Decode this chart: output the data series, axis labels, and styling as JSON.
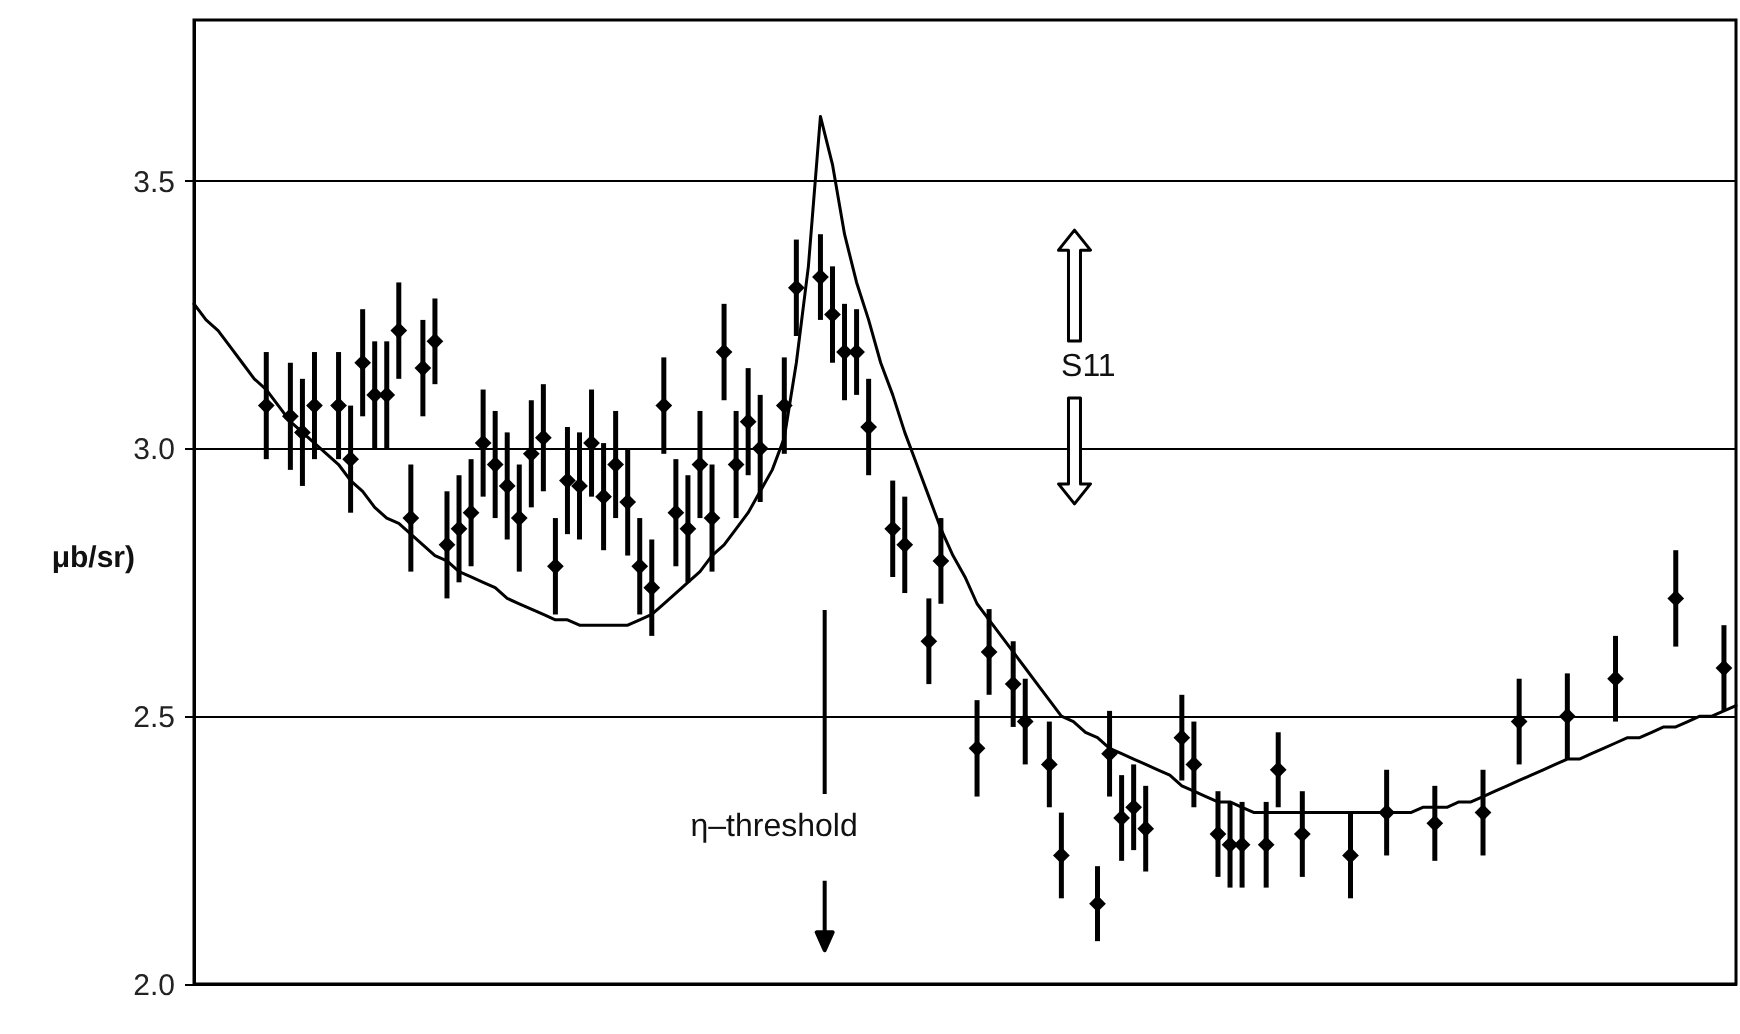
{
  "chart_data": {
    "type": "scatter",
    "ylabel": "μb/sr)",
    "annotations": [
      "S11",
      "η–threshold"
    ],
    "categories": [
      null,
      null,
      null,
      null,
      null,
      null,
      null,
      null,
      null,
      null,
      null,
      null,
      null,
      null,
      null,
      null,
      null,
      null,
      null,
      null,
      null,
      null,
      null,
      null,
      null,
      null,
      null,
      null,
      null,
      null,
      null,
      null,
      null,
      null,
      null,
      null,
      null,
      null,
      null,
      null,
      null,
      null,
      null,
      null,
      null,
      null,
      null,
      null,
      null,
      null,
      null,
      null,
      null,
      null,
      null,
      null,
      null,
      null,
      null,
      null,
      null,
      null,
      null,
      null,
      null,
      null,
      null,
      null,
      null,
      null,
      null,
      null,
      null,
      null,
      null,
      null,
      null,
      null,
      null,
      null,
      null,
      null,
      null,
      null,
      null,
      null,
      null,
      null,
      null,
      null,
      null,
      null,
      null,
      null,
      null,
      null,
      null,
      null,
      null,
      null,
      null,
      null,
      null,
      null,
      null,
      null,
      null,
      null,
      null,
      null,
      null,
      null,
      null,
      null,
      null,
      null,
      null,
      null,
      null,
      null,
      null,
      null,
      null,
      null,
      null,
      null,
      null,
      null,
      null
    ],
    "ylim": [
      2,
      3.8
    ],
    "yticks": [
      {
        "value": 2,
        "label": "2.0"
      },
      2.5,
      {
        "value": 3,
        "label": "3.0"
      },
      3.5
    ],
    "grid": "y",
    "series": [
      {
        "type": "line",
        "color": "#000000",
        "values": [
          3.27,
          3.24,
          3.22,
          3.19,
          3.16,
          3.13,
          3.11,
          3.08,
          3.05,
          3.03,
          3.01,
          2.99,
          2.97,
          2.94,
          2.92,
          2.89,
          2.87,
          2.86,
          2.84,
          2.82,
          2.8,
          2.79,
          2.77,
          2.76,
          2.75,
          2.74,
          2.72,
          2.71,
          2.7,
          2.69,
          2.68,
          2.68,
          2.67,
          2.67,
          2.67,
          2.67,
          2.67,
          2.68,
          2.69,
          2.71,
          2.73,
          2.75,
          2.77,
          2.8,
          2.82,
          2.85,
          2.88,
          2.92,
          2.96,
          3.02,
          3.16,
          3.34,
          3.62,
          3.53,
          3.4,
          3.31,
          3.24,
          3.16,
          3.1,
          3.03,
          2.97,
          2.91,
          2.85,
          2.8,
          2.76,
          2.71,
          2.68,
          2.65,
          2.62,
          2.59,
          2.56,
          2.53,
          2.5,
          2.49,
          2.47,
          2.46,
          2.44,
          2.43,
          2.42,
          2.41,
          2.4,
          2.39,
          2.37,
          2.36,
          2.35,
          2.34,
          2.34,
          2.33,
          2.32,
          2.32,
          2.32,
          2.32,
          2.32,
          2.32,
          2.32,
          2.32,
          2.32,
          2.32,
          2.32,
          2.32,
          2.32,
          2.32,
          2.33,
          2.33,
          2.33,
          2.34,
          2.34,
          2.35,
          2.36,
          2.37,
          2.38,
          2.39,
          2.4,
          2.41,
          2.42,
          2.42,
          2.43,
          2.44,
          2.45,
          2.46,
          2.46,
          2.47,
          2.48,
          2.48,
          2.49,
          2.5,
          2.5,
          2.51,
          2.52
        ]
      },
      {
        "type": "scatter",
        "color": "#000000",
        "marker": "diamond",
        "values": [
          null,
          null,
          null,
          null,
          null,
          null,
          3.08,
          null,
          3.06,
          3.03,
          3.08,
          null,
          3.08,
          2.98,
          3.16,
          3.1,
          3.1,
          3.22,
          2.87,
          3.15,
          3.2,
          2.82,
          2.85,
          2.88,
          3.01,
          2.97,
          2.93,
          2.87,
          2.99,
          3.02,
          2.78,
          2.94,
          2.93,
          3.01,
          2.91,
          2.97,
          2.9,
          2.78,
          2.74,
          3.08,
          2.88,
          2.85,
          2.97,
          2.87,
          3.18,
          2.97,
          3.05,
          3.0,
          null,
          3.08,
          3.3,
          null,
          3.32,
          3.25,
          3.18,
          3.18,
          3.04,
          null,
          2.85,
          2.82,
          null,
          2.64,
          2.79,
          null,
          null,
          2.44,
          2.62,
          null,
          2.56,
          2.49,
          null,
          2.41,
          2.24,
          null,
          null,
          2.15,
          2.43,
          2.31,
          2.33,
          2.29,
          null,
          null,
          2.46,
          2.41,
          null,
          2.28,
          2.26,
          2.26,
          null,
          2.26,
          2.4,
          null,
          2.28,
          null,
          null,
          null,
          2.24,
          null,
          null,
          2.32,
          null,
          null,
          null,
          2.3,
          null,
          null,
          null,
          2.32,
          null,
          null,
          2.49,
          null,
          null,
          null,
          2.5,
          null,
          null,
          null,
          2.57,
          null,
          null,
          null,
          null,
          2.72,
          null,
          null,
          null,
          2.59,
          null
        ],
        "errors": [
          null,
          null,
          null,
          null,
          null,
          null,
          0.1,
          null,
          0.1,
          0.1,
          0.1,
          null,
          0.1,
          0.1,
          0.1,
          0.1,
          0.1,
          0.09,
          0.1,
          0.09,
          0.08,
          0.1,
          0.1,
          0.1,
          0.1,
          0.1,
          0.1,
          0.1,
          0.1,
          0.1,
          0.09,
          0.1,
          0.1,
          0.1,
          0.1,
          0.1,
          0.1,
          0.09,
          0.09,
          0.09,
          0.1,
          0.1,
          0.1,
          0.1,
          0.09,
          0.1,
          0.1,
          0.1,
          null,
          0.09,
          0.09,
          null,
          0.08,
          0.09,
          0.09,
          0.08,
          0.09,
          null,
          0.09,
          0.09,
          null,
          0.08,
          0.08,
          null,
          null,
          0.09,
          0.08,
          null,
          0.08,
          0.08,
          null,
          0.08,
          0.08,
          null,
          null,
          0.07,
          0.08,
          0.08,
          0.08,
          0.08,
          null,
          null,
          0.08,
          0.08,
          null,
          0.08,
          0.08,
          0.08,
          null,
          0.08,
          0.07,
          null,
          0.08,
          null,
          null,
          null,
          0.08,
          null,
          null,
          0.08,
          null,
          null,
          null,
          0.07,
          null,
          null,
          null,
          0.08,
          null,
          null,
          0.08,
          null,
          null,
          null,
          0.08,
          null,
          null,
          null,
          0.08,
          null,
          null,
          null,
          null,
          0.09,
          null,
          null,
          null,
          0.08,
          null
        ]
      }
    ]
  }
}
